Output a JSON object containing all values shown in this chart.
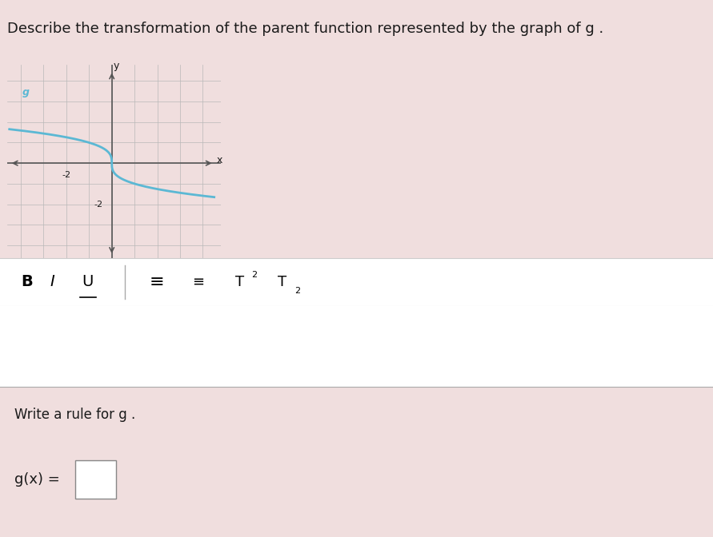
{
  "title_text": "Describe the transformation of the parent function represented by the graph of g .",
  "graph_xlim": [
    -4,
    4
  ],
  "graph_ylim": [
    -4,
    4
  ],
  "curve_color": "#5bb8d4",
  "curve_label": "g",
  "page_bg": "#f0dede",
  "graph_bg": "#d8d8d8",
  "text_color": "#1a1a1a",
  "grid_color": "#b8b8b8",
  "axis_color": "#555555",
  "white": "#ffffff",
  "font_size_title": 13,
  "font_size_rule": 12,
  "write_rule_text": "Write a rule for g .",
  "gx_label": "g(x) ="
}
